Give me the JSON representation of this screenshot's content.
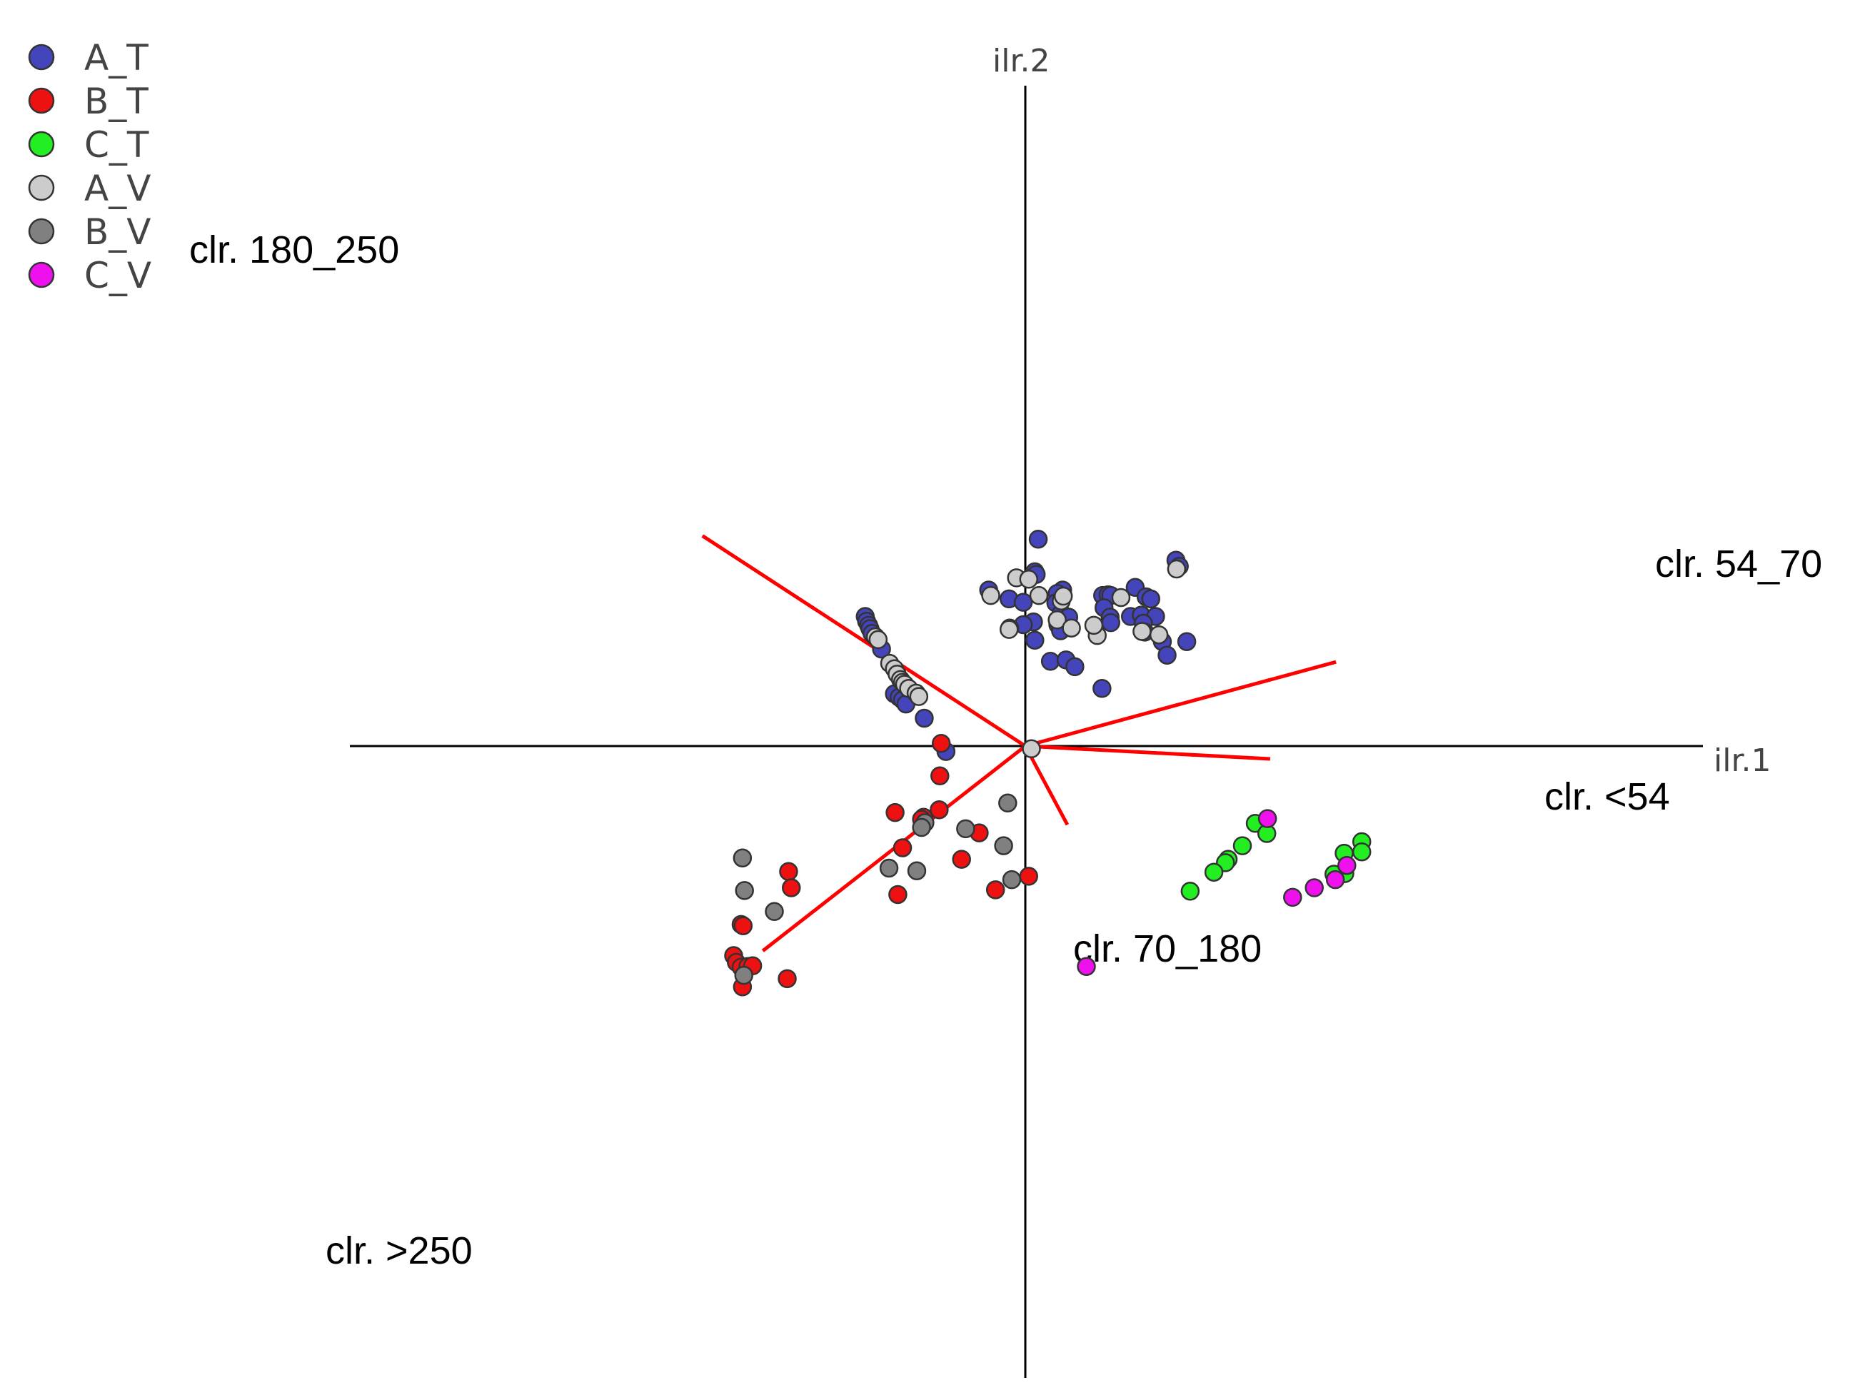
{
  "chart_data": {
    "type": "scatter",
    "title": "",
    "xlabel": "ilr.1",
    "ylabel": "ilr.2",
    "xlim": [
      -5,
      5
    ],
    "ylim": [
      -4.6,
      4.8
    ],
    "legend": {
      "placement": "top-left",
      "entries": [
        {
          "name": "A_T",
          "color": "#4444bb"
        },
        {
          "name": "B_T",
          "color": "#ee1111"
        },
        {
          "name": "C_T",
          "color": "#22ee22"
        },
        {
          "name": "A_V",
          "color": "#cccccc"
        },
        {
          "name": "B_V",
          "color": "#808080"
        },
        {
          "name": "C_V",
          "color": "#ee11ee"
        }
      ]
    },
    "loadings": [
      {
        "label": "clr. 180_250",
        "x": -4.76,
        "y": 3.1
      },
      {
        "label": "clr. 54_70",
        "x": 4.58,
        "y": 1.24
      },
      {
        "label": "clr. <54",
        "x": 3.61,
        "y": -0.19
      },
      {
        "label": "clr. 70_180",
        "x": 0.62,
        "y": -1.16
      },
      {
        "label": "clr. >250",
        "x": -3.87,
        "y": -3.02
      }
    ],
    "series": [
      {
        "name": "A_T",
        "color": "#4444bb",
        "points": [
          [
            0.19,
            3.05
          ],
          [
            0.14,
            2.57
          ],
          [
            0.16,
            2.53
          ],
          [
            -0.54,
            2.3
          ],
          [
            -0.24,
            2.17
          ],
          [
            -0.03,
            2.12
          ],
          [
            0.55,
            2.3
          ],
          [
            0.47,
            2.25
          ],
          [
            0.45,
            2.11
          ],
          [
            1.14,
            2.22
          ],
          [
            1.22,
            2.23
          ],
          [
            1.26,
            2.22
          ],
          [
            1.16,
            2.04
          ],
          [
            1.62,
            2.34
          ],
          [
            1.78,
            2.2
          ],
          [
            1.85,
            2.17
          ],
          [
            2.22,
            2.74
          ],
          [
            2.27,
            2.65
          ],
          [
            1.55,
            1.91
          ],
          [
            1.71,
            1.93
          ],
          [
            1.92,
            1.91
          ],
          [
            1.74,
            1.81
          ],
          [
            1.25,
            1.9
          ],
          [
            1.26,
            1.82
          ],
          [
            0.53,
            1.96
          ],
          [
            0.64,
            1.9
          ],
          [
            0.12,
            1.83
          ],
          [
            -0.03,
            1.79
          ],
          [
            0.48,
            1.79
          ],
          [
            0.52,
            1.7
          ],
          [
            1.76,
            1.68
          ],
          [
            2.02,
            1.54
          ],
          [
            2.38,
            1.54
          ],
          [
            2.09,
            1.34
          ],
          [
            0.14,
            1.56
          ],
          [
            0.37,
            1.25
          ],
          [
            0.6,
            1.27
          ],
          [
            0.73,
            1.17
          ],
          [
            1.13,
            0.85
          ],
          [
            -2.36,
            1.91
          ],
          [
            -2.34,
            1.84
          ],
          [
            -2.31,
            1.78
          ],
          [
            -2.29,
            1.73
          ],
          [
            -2.26,
            1.66
          ],
          [
            -2.12,
            1.43
          ],
          [
            -1.93,
            0.77
          ],
          [
            -1.86,
            0.72
          ],
          [
            -1.81,
            0.68
          ],
          [
            -1.76,
            0.62
          ],
          [
            -1.49,
            0.41
          ],
          [
            -1.17,
            -0.08
          ]
        ]
      },
      {
        "name": "A_V",
        "color": "#cccccc",
        "points": [
          [
            -0.13,
            2.48
          ],
          [
            0.05,
            2.46
          ],
          [
            -0.51,
            2.22
          ],
          [
            0.2,
            2.22
          ],
          [
            0.53,
            2.14
          ],
          [
            0.56,
            2.21
          ],
          [
            1.41,
            2.19
          ],
          [
            2.23,
            2.61
          ],
          [
            0.47,
            1.86
          ],
          [
            0.68,
            1.74
          ],
          [
            -0.23,
            1.74
          ],
          [
            -0.24,
            1.72
          ],
          [
            1.06,
            1.63
          ],
          [
            1.01,
            1.78
          ],
          [
            1.72,
            1.69
          ],
          [
            1.97,
            1.64
          ],
          [
            -2.21,
            1.61
          ],
          [
            -2.17,
            1.57
          ],
          [
            -2.0,
            1.22
          ],
          [
            -1.93,
            1.14
          ],
          [
            -1.89,
            1.06
          ],
          [
            -1.84,
            0.98
          ],
          [
            -1.81,
            0.94
          ],
          [
            -1.78,
            0.91
          ],
          [
            -1.72,
            0.85
          ],
          [
            -1.61,
            0.78
          ],
          [
            -1.57,
            0.73
          ],
          [
            0.09,
            -0.04
          ]
        ]
      },
      {
        "name": "B_T",
        "color": "#ee1111",
        "points": [
          [
            -1.24,
            0.04
          ],
          [
            -1.26,
            -0.44
          ],
          [
            -1.27,
            -0.94
          ],
          [
            -1.92,
            -0.98
          ],
          [
            -1.5,
            -1.05
          ],
          [
            -1.53,
            -1.08
          ],
          [
            -1.81,
            -1.5
          ],
          [
            -0.68,
            -1.28
          ],
          [
            -0.94,
            -1.67
          ],
          [
            -3.49,
            -1.85
          ],
          [
            -3.45,
            -2.09
          ],
          [
            -1.88,
            -2.19
          ],
          [
            -0.44,
            -2.12
          ],
          [
            0.05,
            -1.92
          ],
          [
            -4.19,
            -2.63
          ],
          [
            -4.16,
            -2.65
          ],
          [
            -4.3,
            -3.09
          ],
          [
            -4.26,
            -3.19
          ],
          [
            -4.19,
            -3.26
          ],
          [
            -4.09,
            -3.25
          ],
          [
            -4.02,
            -3.24
          ],
          [
            -3.51,
            -3.43
          ],
          [
            -4.17,
            -3.55
          ]
        ]
      },
      {
        "name": "B_V",
        "color": "#808080",
        "points": [
          [
            -0.26,
            -0.84
          ],
          [
            -1.48,
            -1.13
          ],
          [
            -1.53,
            -1.2
          ],
          [
            -0.88,
            -1.22
          ],
          [
            -0.32,
            -1.47
          ],
          [
            -4.17,
            -1.65
          ],
          [
            -2.01,
            -1.8
          ],
          [
            -1.6,
            -1.84
          ],
          [
            -0.2,
            -1.97
          ],
          [
            -4.14,
            -2.13
          ],
          [
            -3.7,
            -2.44
          ],
          [
            -4.15,
            -3.38
          ]
        ]
      },
      {
        "name": "C_T",
        "color": "#22ee22",
        "points": [
          [
            4.96,
            -1.41
          ],
          [
            4.96,
            -1.56
          ],
          [
            4.7,
            -1.58
          ],
          [
            4.71,
            -1.88
          ],
          [
            4.55,
            -1.89
          ],
          [
            3.39,
            -1.14
          ],
          [
            3.56,
            -1.29
          ],
          [
            3.2,
            -1.47
          ],
          [
            2.99,
            -1.67
          ],
          [
            2.95,
            -1.72
          ],
          [
            2.78,
            -1.86
          ],
          [
            2.43,
            -2.14
          ]
        ]
      },
      {
        "name": "C_V",
        "color": "#ee11ee",
        "points": [
          [
            3.57,
            -1.07
          ],
          [
            4.74,
            -1.76
          ],
          [
            4.57,
            -1.97
          ],
          [
            4.26,
            -2.09
          ],
          [
            3.94,
            -2.23
          ],
          [
            0.9,
            -3.25
          ]
        ]
      }
    ]
  }
}
